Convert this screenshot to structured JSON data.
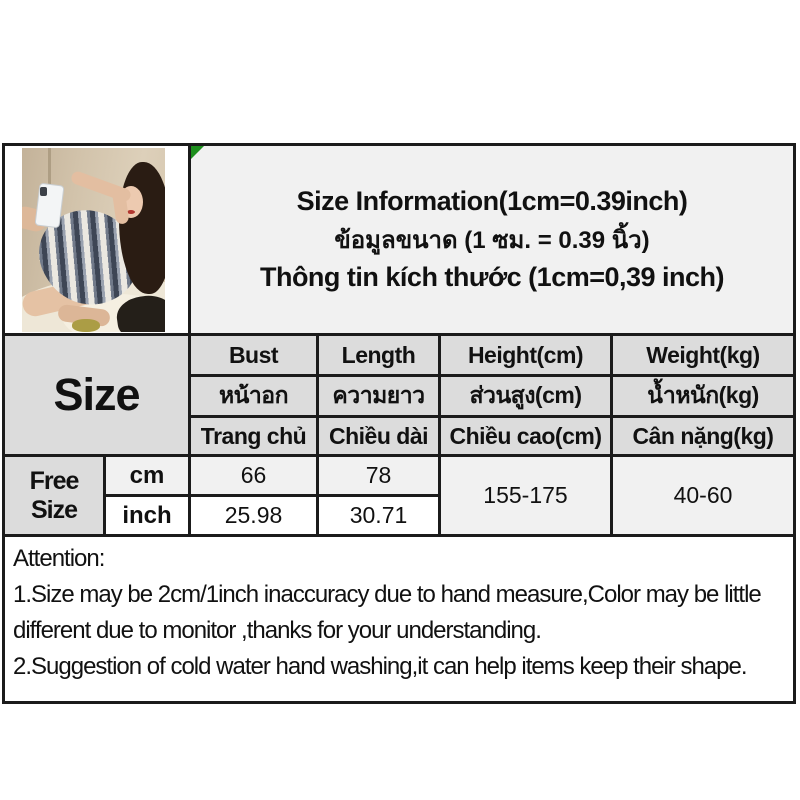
{
  "title": {
    "line_en": "Size Information(1cm=0.39inch)",
    "line_th": "ข้อมูลขนาด (1 ซม. = 0.39 นิ้ว)",
    "line_vi": "Thông tin kích thước (1cm=0,39 inch)"
  },
  "table": {
    "size_header": "Size",
    "columns": {
      "en": [
        "Bust",
        "Length",
        "Height(cm)",
        "Weight(kg)"
      ],
      "th": [
        "หน้าอก",
        "ความยาว",
        "ส่วนสูง(cm)",
        "น้ำหนัก(kg)"
      ],
      "vi": [
        "Trang chủ",
        "Chiều dài",
        "Chiều cao(cm)",
        "Cân nặng(kg)"
      ]
    },
    "row_label": "Free Size",
    "units": {
      "cm": "cm",
      "inch": "inch"
    },
    "values": {
      "bust_cm": "66",
      "length_cm": "78",
      "bust_inch": "25.98",
      "length_inch": "30.71",
      "height_range": "155-175",
      "weight_range": "40-60"
    }
  },
  "attention": {
    "lines": [
      "Attention:",
      "1.Size may be 2cm/1inch inaccuracy due to hand measure,Color may be little",
      "different due to monitor ,thanks for your understanding.",
      "2.Suggestion of cold water hand washing,it can help items keep their shape."
    ]
  },
  "photo": {
    "subject": "mirror selfie of model in striped knit tank dress on bed"
  },
  "colors": {
    "border": "#1b1b1b",
    "header_cell_bg": "#dcdcdc",
    "light_cell_bg": "#f1f1f1",
    "white_cell_bg": "#ffffff",
    "marker_green": "#1d8f1d"
  }
}
